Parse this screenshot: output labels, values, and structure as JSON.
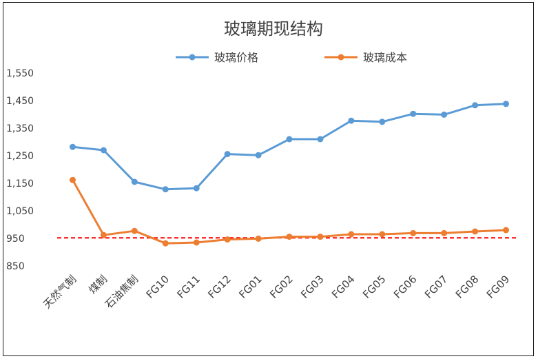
{
  "chart_data": {
    "type": "line",
    "title": "玻璃期现结构",
    "xlabel": "",
    "ylabel": "",
    "categories": [
      "天然气制",
      "煤制",
      "石油焦制",
      "FG10",
      "FG11",
      "FG12",
      "FG01",
      "FG02",
      "FG03",
      "FG04",
      "FG05",
      "FG06",
      "FG07",
      "FG08",
      "FG09"
    ],
    "series": [
      {
        "name": "玻璃价格",
        "color": "#5b9bd5",
        "values": [
          1282,
          1270,
          1155,
          1128,
          1132,
          1256,
          1252,
          1310,
          1310,
          1377,
          1373,
          1402,
          1399,
          1433,
          1438
        ]
      },
      {
        "name": "玻璃成本",
        "color": "#ed7d31",
        "values": [
          1162,
          962,
          977,
          932,
          935,
          946,
          949,
          956,
          956,
          965,
          965,
          969,
          969,
          975,
          980
        ]
      }
    ],
    "reference_line": {
      "value": 952,
      "style": "dashed",
      "color": "#ff0000"
    },
    "ylim": [
      850,
      1550
    ],
    "yticks": [
      "850",
      "950",
      "1,050",
      "1,150",
      "1,250",
      "1,350",
      "1,450",
      "1,550"
    ],
    "ytick_values": [
      850,
      950,
      1050,
      1150,
      1250,
      1350,
      1450,
      1550
    ],
    "legend_position": "top",
    "grid": false
  }
}
